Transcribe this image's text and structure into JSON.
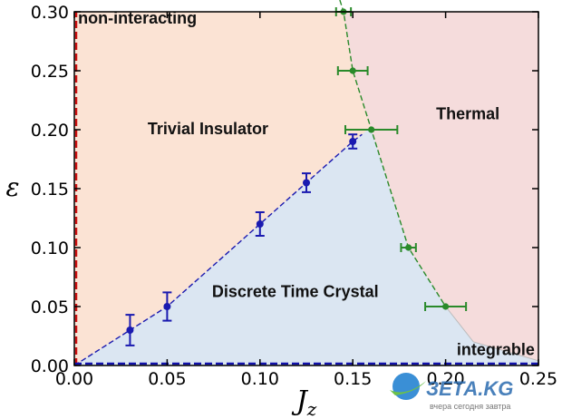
{
  "chart_data": {
    "type": "scatter",
    "xlabel": "J_z",
    "ylabel": "ε",
    "xlim": [
      0.0,
      0.25
    ],
    "ylim": [
      0.0,
      0.3
    ],
    "xticks": [
      "0.00",
      "0.05",
      "0.10",
      "0.15",
      "0.20",
      "0.25"
    ],
    "yticks": [
      "0.00",
      "0.05",
      "0.10",
      "0.15",
      "0.20",
      "0.25",
      "0.30"
    ],
    "grid": false,
    "regions": [
      {
        "label": "non-interacting",
        "color": "#cc1111"
      },
      {
        "label": "Trivial Insulator",
        "color": "#fbe3d4"
      },
      {
        "label": "Thermal",
        "color": "#f5dcdc"
      },
      {
        "label": "Discrete Time Crystal",
        "color": "#dbe6f2"
      },
      {
        "label": "integrable",
        "color": "#1111aa"
      }
    ],
    "series": [
      {
        "color": "#1a1ab0",
        "x": [
          0.03,
          0.05,
          0.1,
          0.125,
          0.15
        ],
        "y": [
          0.03,
          0.05,
          0.12,
          0.155,
          0.19
        ],
        "yerr": [
          0.013,
          0.012,
          0.01,
          0.008,
          0.006
        ]
      },
      {
        "color": "#2a8a2a",
        "x": [
          0.145,
          0.15,
          0.16,
          0.18,
          0.2
        ],
        "y": [
          0.3,
          0.25,
          0.2,
          0.1,
          0.05
        ],
        "xerr": [
          0.004,
          0.008,
          0.014,
          0.004,
          0.011
        ]
      }
    ]
  },
  "watermark": {
    "text": "ЗЕТА.KG",
    "tagline": "вчера сегодня завтра"
  }
}
